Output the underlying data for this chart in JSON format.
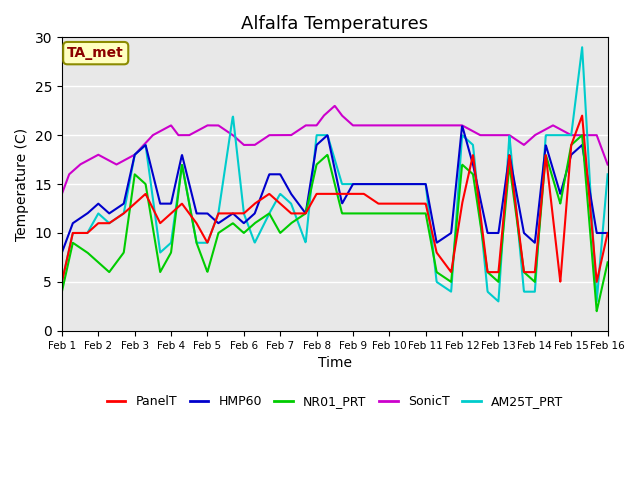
{
  "title": "Alfalfa Temperatures",
  "xlabel": "Time",
  "ylabel": "Temperature (C)",
  "ylim": [
    0,
    30
  ],
  "annotation_text": "TA_met",
  "annotation_color": "#8B0000",
  "annotation_bg": "#FFFFC0",
  "annotation_edge": "#8B8B00",
  "background_color": "#E8E8E8",
  "plot_bg": "#E8E8E8",
  "series": {
    "PanelT": {
      "color": "#FF0000",
      "lw": 1.5
    },
    "HMP60": {
      "color": "#0000CC",
      "lw": 1.5
    },
    "NR01_PRT": {
      "color": "#00CC00",
      "lw": 1.5
    },
    "SonicT": {
      "color": "#CC00CC",
      "lw": 1.5
    },
    "AM25T_PRT": {
      "color": "#00CCCC",
      "lw": 1.5
    }
  },
  "xtick_labels": [
    "Feb 1",
    "Feb 2",
    "Feb 3",
    "Feb 4",
    "Feb 5",
    "Feb 6",
    "Feb 7",
    "Feb 8",
    "Feb 9",
    "Feb 10",
    "Feb 11",
    "Feb 12",
    "Feb 13",
    "Feb 14",
    "Feb 15",
    "Feb 16"
  ],
  "ytick_labels": [
    "0",
    "5",
    "10",
    "15",
    "20",
    "25",
    "30"
  ]
}
